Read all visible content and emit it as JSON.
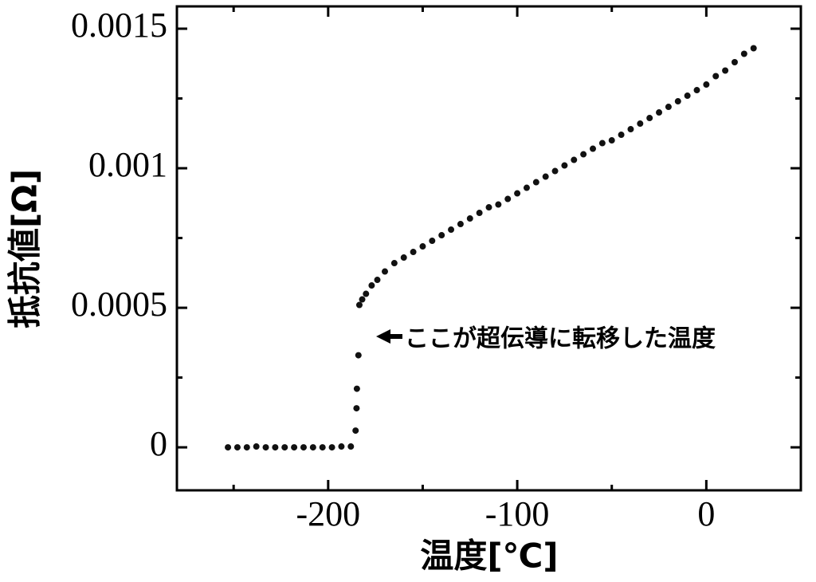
{
  "chart_data": {
    "type": "scatter",
    "x_label": "温度[℃]",
    "y_label": "抵抗値[Ω]",
    "annotation": "ここが超伝導に転移した温度",
    "color": "#111111",
    "xlim": [
      -280,
      50
    ],
    "ylim": [
      -0.000154,
      0.00158
    ],
    "xticks": [
      -200,
      -100,
      0
    ],
    "yticks": [
      0,
      0.0005,
      0.001,
      0.0015
    ],
    "xminor_ticks": [
      -250,
      -150,
      -50
    ],
    "yminor_ticks": [
      0.00025,
      0.00075,
      0.00125
    ],
    "x": [
      -253,
      -248,
      -243,
      -238,
      -233,
      -228,
      -223,
      -218,
      -213,
      -208,
      -203,
      -198,
      -193,
      -188,
      -185.5,
      -185,
      -184.8,
      -184,
      -183.5,
      -182,
      -180,
      -177,
      -174,
      -170,
      -165,
      -160,
      -155,
      -150,
      -145,
      -140,
      -135,
      -130,
      -125,
      -120,
      -115,
      -110,
      -105,
      -100,
      -95,
      -90,
      -85,
      -80,
      -75,
      -70,
      -65,
      -60,
      -55,
      -50,
      -45,
      -40,
      -35,
      -30,
      -25,
      -20,
      -15,
      -10,
      -5,
      0,
      5,
      10,
      15,
      20,
      25
    ],
    "values": [
      0,
      0,
      0,
      3e-06,
      0,
      0,
      0,
      0,
      0,
      0,
      0,
      0,
      3e-06,
      3e-06,
      6e-05,
      0.00014,
      0.00021,
      0.00033,
      0.00051,
      0.00053,
      0.00055,
      0.00058,
      0.0006,
      0.00063,
      0.00066,
      0.00068,
      0.0007,
      0.00072,
      0.00074,
      0.00076,
      0.00078,
      0.0008,
      0.00082,
      0.00084,
      0.00086,
      0.00087,
      0.00089,
      0.00091,
      0.00093,
      0.00095,
      0.00097,
      0.00099,
      0.00101,
      0.00103,
      0.00105,
      0.00107,
      0.00109,
      0.0011,
      0.00112,
      0.00114,
      0.00116,
      0.00118,
      0.0012,
      0.00122,
      0.00124,
      0.00126,
      0.00128,
      0.0013,
      0.00133,
      0.00135,
      0.00138,
      0.00141,
      0.00143
    ]
  }
}
